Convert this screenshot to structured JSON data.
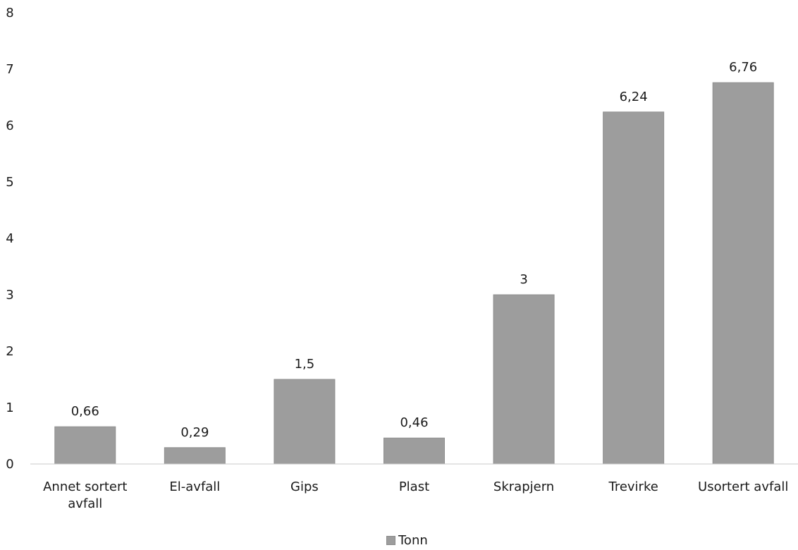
{
  "chart_data": {
    "type": "bar",
    "categories": [
      "Annet sortert avfall",
      "El-avfall",
      "Gips",
      "Plast",
      "Skrapjern",
      "Trevirke",
      "Usortert avfall"
    ],
    "series": [
      {
        "name": "Tonn",
        "values": [
          0.66,
          0.29,
          1.5,
          0.46,
          3,
          6.24,
          6.76
        ]
      }
    ],
    "data_labels": [
      "0,66",
      "0,29",
      "1,5",
      "0,46",
      "3",
      "6,24",
      "6,76"
    ],
    "y_ticks": [
      "0",
      "1",
      "2",
      "3",
      "4",
      "5",
      "6",
      "7",
      "8"
    ],
    "ylim": [
      0,
      8
    ],
    "grid": false,
    "legend_position": "bottom",
    "bar_color": "#9d9d9d"
  },
  "legend": {
    "label": "Tonn"
  }
}
